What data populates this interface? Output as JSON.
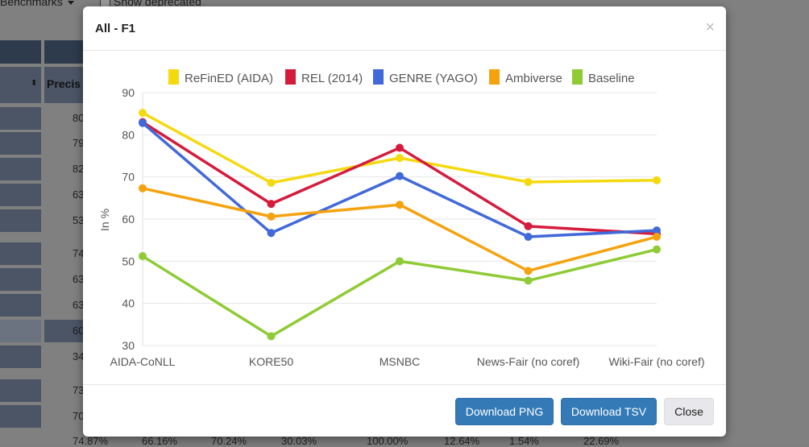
{
  "background": {
    "dropdown_label": "Benchmarks",
    "checkbox_label": "Show deprecated",
    "column_header": "Precis",
    "row_values": [
      "80",
      "79",
      "82",
      "63",
      "53",
      "74",
      "63",
      "63",
      "60",
      "34",
      "73",
      "70"
    ],
    "bottom_row": [
      "74.87%",
      "66.16%",
      "70.24%",
      "30.03%",
      "100.00%",
      "12.64%",
      "1.54%",
      "22.69%"
    ]
  },
  "modal": {
    "title": "All - F1",
    "close_symbol": "×",
    "buttons": {
      "download_png": "Download PNG",
      "download_tsv": "Download TSV",
      "close": "Close"
    }
  },
  "chart_data": {
    "type": "line",
    "title": "",
    "xlabel": "",
    "ylabel": "In %",
    "ylim": [
      30,
      90
    ],
    "yticks": [
      30,
      40,
      50,
      60,
      70,
      80,
      90
    ],
    "grid": true,
    "legend_position": "top",
    "categories": [
      "AIDA-CoNLL",
      "KORE50",
      "MSNBC",
      "News-Fair (no coref)",
      "Wiki-Fair (no coref)"
    ],
    "series": [
      {
        "name": "ReFinED (AIDA)",
        "color": "#f5d90f",
        "values": [
          85.2,
          68.6,
          74.5,
          68.8,
          69.2
        ]
      },
      {
        "name": "REL (2014)",
        "color": "#d51b3c",
        "values": [
          83.0,
          63.6,
          76.9,
          58.3,
          56.5
        ]
      },
      {
        "name": "GENRE (YAGO)",
        "color": "#4169d9",
        "values": [
          82.8,
          56.7,
          70.2,
          55.8,
          57.3
        ]
      },
      {
        "name": "Ambiverse",
        "color": "#f5a20f",
        "values": [
          67.3,
          60.6,
          63.4,
          47.7,
          55.8
        ]
      },
      {
        "name": "Baseline",
        "color": "#8ecb35",
        "values": [
          51.2,
          32.2,
          50.0,
          45.4,
          52.8
        ]
      }
    ]
  }
}
